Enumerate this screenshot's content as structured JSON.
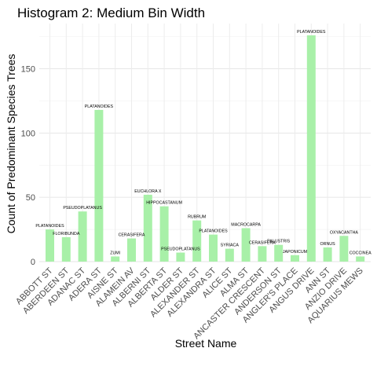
{
  "chart_data": {
    "type": "bar",
    "title": "Histogram 2: Medium Bin Width",
    "xlabel": "Street Name",
    "ylabel": "Count of Predominant Species Trees",
    "ylim": [
      0,
      176
    ],
    "yticks": [
      0,
      50,
      100,
      150
    ],
    "grid": true,
    "legend": "none",
    "bar_color": "#a8f0a8",
    "categories": [
      "ABBOTT ST",
      "ABERDEEN ST",
      "ADANAC ST",
      "ADERA ST",
      "AISNE ST",
      "ALAMEIN AV",
      "ALBERNI ST",
      "ALBERTA ST",
      "ALDER ST",
      "ALEXANDER ST",
      "ALEXANDRA ST",
      "ALICE ST",
      "ALMA ST",
      "ANCASTER CRESCENT",
      "ANDERSON ST",
      "ANGLER'S PLACE",
      "ANGUS DRIVE",
      "ANN ST",
      "ANZIO DRIVE",
      "AQUARIUS MEWS"
    ],
    "values": [
      25,
      19,
      39,
      118,
      4,
      18,
      52,
      43,
      7,
      32,
      21,
      10,
      26,
      12,
      13,
      5,
      176,
      11,
      20,
      4
    ],
    "bar_labels": [
      "PLATANOIDES",
      "FLORIBUNDA",
      "PSEUDOPLATANUS",
      "PLATANOIDES",
      "ZUMI",
      "CERASIFERA",
      "EUCHLORA   X",
      "HIPPOCASTANUM",
      "PSEUDOPLATANUS",
      "RUBRUM",
      "PLATANOIDES",
      "SYRIACA",
      "MACROCARPA",
      "CERASIFERA",
      "PALUSTRIS",
      "JAPONICUM",
      "PLATANOIDES",
      "ORNUS",
      "OXYACANTHA",
      "COCCINEA"
    ]
  }
}
